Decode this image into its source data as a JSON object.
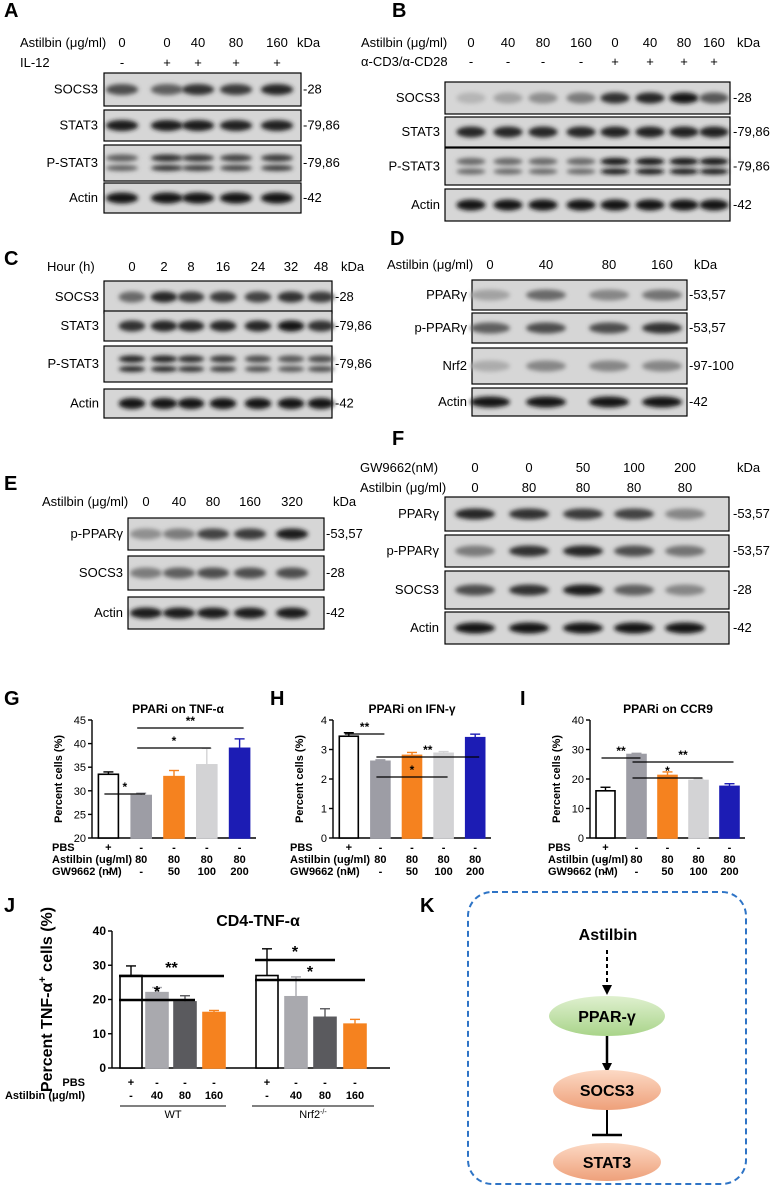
{
  "panel_labels": [
    "A",
    "B",
    "C",
    "D",
    "E",
    "F",
    "G",
    "H",
    "I",
    "J",
    "K"
  ],
  "units": {
    "kda": "kDa"
  },
  "blots": {
    "A": {
      "headers": [
        {
          "label": "Astilbin (μg/ml)",
          "values": [
            "0",
            "0",
            "40",
            "80",
            "160"
          ]
        },
        {
          "label": "IL-12",
          "values": [
            "-",
            "+",
            "+",
            "+",
            "+"
          ]
        }
      ],
      "rows": [
        {
          "name": "SOCS3",
          "kda": "-28",
          "intensity": [
            0.65,
            0.55,
            0.8,
            0.75,
            0.85
          ],
          "double": false
        },
        {
          "name": "STAT3",
          "kda": "-79,86",
          "intensity": [
            0.9,
            0.9,
            0.9,
            0.88,
            0.88
          ],
          "double": false
        },
        {
          "name": "P-STAT3",
          "kda": "-79,86",
          "intensity": [
            0.55,
            0.8,
            0.75,
            0.7,
            0.75
          ],
          "double": true
        },
        {
          "name": "Actin",
          "kda": "-42",
          "intensity": [
            0.95,
            0.95,
            0.95,
            0.95,
            0.95
          ],
          "double": false
        }
      ]
    },
    "B": {
      "headers": [
        {
          "label": "Astilbin (μg/ml)",
          "values": [
            "0",
            "40",
            "80",
            "160",
            "0",
            "40",
            "80",
            "160"
          ]
        },
        {
          "label": "α-CD3/α-CD28",
          "values": [
            "-",
            "-",
            "-",
            "-",
            "+",
            "+",
            "+",
            "+"
          ]
        }
      ],
      "rows": [
        {
          "name": "SOCS3",
          "kda": "-28",
          "intensity": [
            0.1,
            0.2,
            0.3,
            0.4,
            0.8,
            0.85,
            0.95,
            0.6
          ],
          "double": false
        },
        {
          "name": "STAT3",
          "kda": "-79,86",
          "intensity": [
            0.85,
            0.85,
            0.85,
            0.85,
            0.88,
            0.88,
            0.88,
            0.88
          ],
          "double": false
        },
        {
          "name": "P-STAT3",
          "kda": "-79,86",
          "intensity": [
            0.5,
            0.5,
            0.5,
            0.5,
            0.95,
            0.95,
            0.95,
            0.95
          ],
          "double": true
        },
        {
          "name": "Actin",
          "kda": "-42",
          "intensity": [
            0.95,
            0.95,
            0.95,
            0.95,
            0.95,
            0.95,
            0.95,
            0.95
          ],
          "double": false
        }
      ]
    },
    "C": {
      "headers": [
        {
          "label": "Hour (h)",
          "values": [
            "0",
            "2",
            "8",
            "16",
            "24",
            "32",
            "48"
          ]
        }
      ],
      "rows": [
        {
          "name": "SOCS3",
          "kda": "-28",
          "intensity": [
            0.5,
            0.85,
            0.75,
            0.75,
            0.7,
            0.8,
            0.75
          ],
          "double": false
        },
        {
          "name": "STAT3",
          "kda": "-79,86",
          "intensity": [
            0.8,
            0.85,
            0.85,
            0.85,
            0.85,
            0.95,
            0.8
          ],
          "double": false
        },
        {
          "name": "P-STAT3",
          "kda": "-79,86",
          "intensity": [
            0.85,
            0.85,
            0.8,
            0.75,
            0.65,
            0.6,
            0.65
          ],
          "double": true
        },
        {
          "name": "Actin",
          "kda": "-42",
          "intensity": [
            0.95,
            0.95,
            0.95,
            0.95,
            0.95,
            0.95,
            0.95
          ],
          "double": false
        }
      ]
    },
    "D": {
      "headers": [
        {
          "label": "Astilbin (μg/ml)",
          "values": [
            "0",
            "40",
            "80",
            "160"
          ]
        }
      ],
      "rows": [
        {
          "name": "PPARγ",
          "kda": "-53,57",
          "intensity": [
            0.2,
            0.5,
            0.35,
            0.45
          ],
          "double": false
        },
        {
          "name": "p-PPARγ",
          "kda": "-53,57",
          "intensity": [
            0.55,
            0.65,
            0.65,
            0.8
          ],
          "double": false
        },
        {
          "name": "Nrf2",
          "kda": "-97-100",
          "intensity": [
            0.15,
            0.35,
            0.35,
            0.35
          ],
          "double": false
        },
        {
          "name": "Actin",
          "kda": "-42",
          "intensity": [
            0.95,
            0.95,
            0.95,
            0.95
          ],
          "double": false
        }
      ]
    },
    "E": {
      "headers": [
        {
          "label": "Astilbin (μg/ml)",
          "values": [
            "0",
            "40",
            "80",
            "160",
            "320"
          ]
        }
      ],
      "rows": [
        {
          "name": "p-PPARγ",
          "kda": "-53,57",
          "intensity": [
            0.3,
            0.4,
            0.7,
            0.75,
            0.9
          ],
          "double": false
        },
        {
          "name": "SOCS3",
          "kda": "-28",
          "intensity": [
            0.4,
            0.55,
            0.65,
            0.65,
            0.65
          ],
          "double": false
        },
        {
          "name": "Actin",
          "kda": "-42",
          "intensity": [
            0.9,
            0.9,
            0.9,
            0.9,
            0.9
          ],
          "double": false
        }
      ]
    },
    "F": {
      "headers": [
        {
          "label": "GW9662(nM)",
          "values": [
            "0",
            "0",
            "50",
            "100",
            "200"
          ]
        },
        {
          "label": "Astilbin (μg/ml)",
          "values": [
            "0",
            "80",
            "80",
            "80",
            "80"
          ]
        }
      ],
      "rows": [
        {
          "name": "PPARγ",
          "kda": "-53,57",
          "intensity": [
            0.85,
            0.8,
            0.75,
            0.7,
            0.35
          ],
          "double": false
        },
        {
          "name": "p-PPARγ",
          "kda": "-53,57",
          "intensity": [
            0.4,
            0.8,
            0.85,
            0.65,
            0.45
          ],
          "double": false
        },
        {
          "name": "SOCS3",
          "kda": "-28",
          "intensity": [
            0.65,
            0.8,
            0.9,
            0.55,
            0.35
          ],
          "double": false
        },
        {
          "name": "Actin",
          "kda": "-42",
          "intensity": [
            0.95,
            0.95,
            0.95,
            0.95,
            0.95
          ],
          "double": false
        }
      ]
    }
  },
  "chart_data": [
    {
      "id": "G",
      "type": "bar",
      "title": "PPARi on TNF-α",
      "ylabel": "Percent cells (%)",
      "ylim": [
        20,
        45
      ],
      "yticks": [
        "20",
        "25",
        "30",
        "35",
        "40",
        "45"
      ],
      "values": [
        33.5,
        29,
        33,
        35.5,
        39
      ],
      "errors": [
        0.5,
        0.5,
        1.3,
        3.5,
        2
      ],
      "colors": [
        "#ffffff",
        "#9d9da5",
        "#f5821f",
        "#d3d3d5",
        "#1c1cb4"
      ],
      "rows": [
        {
          "label": "PBS",
          "values": [
            "+",
            "-",
            "-",
            "-",
            "-"
          ]
        },
        {
          "label": "Astilbin (ug/ml)",
          "values": [
            "-",
            "80",
            "80",
            "80",
            "80"
          ]
        },
        {
          "label": "GW9662 (nM)",
          "values": [
            "-",
            "-",
            "50",
            "100",
            "200"
          ]
        }
      ],
      "sig": [
        {
          "from": 0,
          "to": 1,
          "label": "*"
        },
        {
          "from": 1,
          "to": 3,
          "label": "*"
        },
        {
          "from": 1,
          "to": 4,
          "label": "**"
        }
      ]
    },
    {
      "id": "H",
      "type": "bar",
      "title": "PPARi on IFN-γ",
      "ylabel": "Percent cells (%)",
      "ylim": [
        0,
        4
      ],
      "yticks": [
        "0",
        "1",
        "2",
        "3",
        "4"
      ],
      "values": [
        3.45,
        2.6,
        2.8,
        2.87,
        3.4
      ],
      "errors": [
        0.12,
        0.05,
        0.1,
        0.06,
        0.12
      ],
      "colors": [
        "#ffffff",
        "#9d9da5",
        "#f5821f",
        "#d3d3d5",
        "#1c1cb4"
      ],
      "rows": [
        {
          "label": "PBS",
          "values": [
            "+",
            "-",
            "-",
            "-",
            "-"
          ]
        },
        {
          "label": "Astilbin (ug/ml)",
          "values": [
            "-",
            "80",
            "80",
            "80",
            "80"
          ]
        },
        {
          "label": "GW9662 (nM)",
          "values": [
            "-",
            "-",
            "50",
            "100",
            "200"
          ]
        }
      ],
      "sig": [
        {
          "from": 0,
          "to": 1,
          "label": "**"
        },
        {
          "from": 1,
          "to": 3,
          "label": "*"
        },
        {
          "from": 1,
          "to": 4,
          "label": "**"
        }
      ]
    },
    {
      "id": "I",
      "type": "bar",
      "title": "PPARi on CCR9",
      "ylabel": "Percent cells (%)",
      "ylim": [
        0,
        40
      ],
      "yticks": [
        "0",
        "10",
        "20",
        "30",
        "40"
      ],
      "values": [
        16,
        28.3,
        21.2,
        19.5,
        17.5
      ],
      "errors": [
        1.2,
        0.4,
        1.2,
        0.4,
        0.9
      ],
      "colors": [
        "#ffffff",
        "#9d9da5",
        "#f5821f",
        "#d3d3d5",
        "#1c1cb4"
      ],
      "rows": [
        {
          "label": "PBS",
          "values": [
            "+",
            "-",
            "-",
            "-",
            "-"
          ]
        },
        {
          "label": "Astilbin (ug/ml)",
          "values": [
            "-",
            "80",
            "80",
            "80",
            "80"
          ]
        },
        {
          "label": "GW9662 (nM)",
          "values": [
            "-",
            "-",
            "50",
            "100",
            "200"
          ]
        }
      ],
      "sig": [
        {
          "from": 0,
          "to": 1,
          "label": "**"
        },
        {
          "from": 1,
          "to": 3,
          "label": "*"
        },
        {
          "from": 1,
          "to": 4,
          "label": "**"
        }
      ]
    },
    {
      "id": "J",
      "type": "bar",
      "title": "CD4-TNF-α",
      "ylabel_parts": [
        "Percent TNF-α",
        "+",
        " cells (%)"
      ],
      "ylim": [
        0,
        40
      ],
      "yticks": [
        "0",
        "10",
        "20",
        "30",
        "40"
      ],
      "values": [
        27,
        22,
        19.3,
        16.2,
        27,
        20.8,
        14.8,
        12.8
      ],
      "errors": [
        2.8,
        1.5,
        1.8,
        0.6,
        7.8,
        5.8,
        2.5,
        1.4
      ],
      "colors": [
        "#ffffff",
        "#a9a9ae",
        "#5a5a5e",
        "#f5821f",
        "#ffffff",
        "#a9a9ae",
        "#5a5a5e",
        "#f5821f"
      ],
      "rows": [
        {
          "label": "PBS",
          "values": [
            "+",
            "-",
            "-",
            "-",
            "+",
            "-",
            "-",
            "-"
          ]
        },
        {
          "label": "Astilbin (μg/ml)",
          "values": [
            "-",
            "40",
            "80",
            "160",
            "-",
            "40",
            "80",
            "160"
          ]
        }
      ],
      "groups": [
        {
          "label": "WT"
        },
        {
          "label": "Nrf2",
          "sup": "-/-"
        }
      ],
      "sig": [
        {
          "from": 0,
          "to": 2,
          "label": "*"
        },
        {
          "from": 0,
          "to": 3,
          "label": "**"
        },
        {
          "from": 4,
          "to": 6,
          "label": "*"
        },
        {
          "from": 4,
          "to": 7,
          "label": "*"
        }
      ]
    }
  ],
  "pathway": {
    "nodes": [
      "Astilbin",
      "PPAR-γ",
      "SOCS3",
      "STAT3"
    ],
    "colors": {
      "ppar": "#b9df9f",
      "socs3": "#f3b28f",
      "stat3": "#f3b28f",
      "border": "#2e74c6"
    }
  }
}
